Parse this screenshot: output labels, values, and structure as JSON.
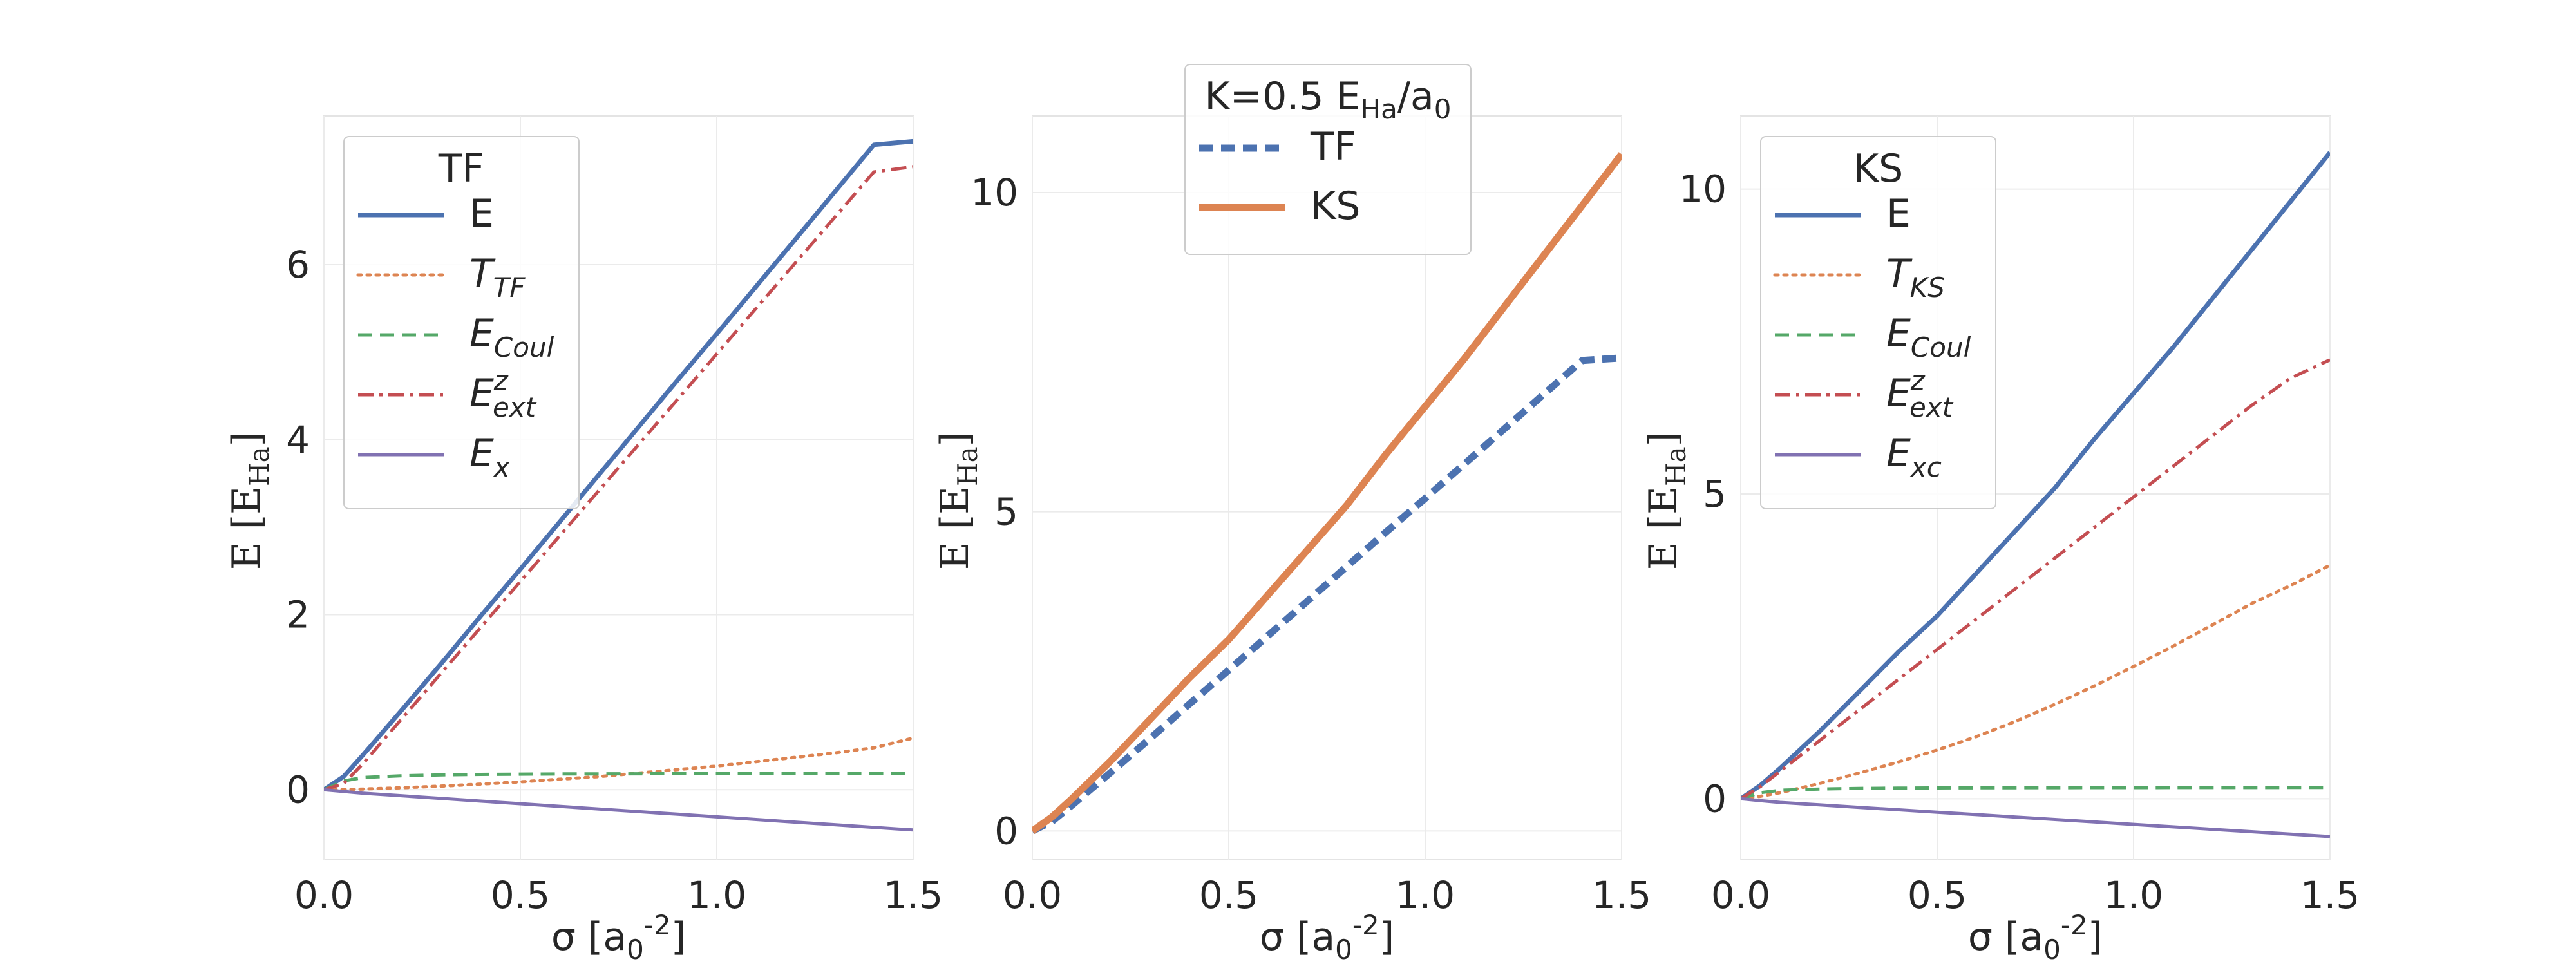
{
  "chart_data": [
    {
      "type": "line",
      "legend_title": "TF",
      "legend_placement": "upper-left",
      "xlabel": "σ [a_0^{-2}]",
      "ylabel": "E [E_{H_a}]",
      "xlim": [
        0.0,
        1.5
      ],
      "ylim": [
        -0.8,
        7.7
      ],
      "xticks": [
        0.0,
        0.5,
        1.0,
        1.5
      ],
      "xtick_labels": [
        "0.0",
        "0.5",
        "1.0",
        "1.5"
      ],
      "yticks": [
        0,
        2,
        4,
        6
      ],
      "ytick_labels": [
        "0",
        "2",
        "4",
        "6"
      ],
      "grid": true,
      "x": [
        0.0,
        0.05,
        0.1,
        0.2,
        0.3,
        0.4,
        0.5,
        0.6,
        0.7,
        0.8,
        0.9,
        1.0,
        1.1,
        1.2,
        1.3,
        1.4,
        1.5
      ],
      "series": [
        {
          "name": "E",
          "label_main": "E",
          "label_sub": "",
          "label_sup": "",
          "color": "#4c72b0",
          "style": "solid",
          "width": 7,
          "values": [
            0.0,
            0.15,
            0.4,
            0.92,
            1.45,
            1.99,
            2.52,
            3.06,
            3.6,
            4.14,
            4.68,
            5.21,
            5.75,
            6.29,
            6.83,
            7.37,
            7.41
          ]
        },
        {
          "name": "T_TF",
          "label_main": "T",
          "label_sub": "TF",
          "label_sup": "",
          "color": "#dd8452",
          "style": "dotted",
          "width": 5,
          "values": [
            0.0,
            0.003,
            0.008,
            0.023,
            0.042,
            0.065,
            0.09,
            0.12,
            0.15,
            0.19,
            0.23,
            0.27,
            0.32,
            0.37,
            0.42,
            0.48,
            0.59
          ]
        },
        {
          "name": "E_Coul",
          "label_main": "E",
          "label_sub": "Coul",
          "label_sup": "",
          "color": "#55a868",
          "style": "dashed",
          "width": 5,
          "values": [
            0.0,
            0.1,
            0.14,
            0.16,
            0.17,
            0.175,
            0.178,
            0.18,
            0.181,
            0.182,
            0.183,
            0.183,
            0.184,
            0.184,
            0.184,
            0.185,
            0.185
          ]
        },
        {
          "name": "E_ext^z",
          "label_main": "E",
          "label_sub": "ext",
          "label_sup": "z",
          "color": "#c44e52",
          "style": "dashdot",
          "width": 5,
          "values": [
            0.0,
            0.07,
            0.3,
            0.82,
            1.34,
            1.86,
            2.38,
            2.9,
            3.42,
            3.94,
            4.46,
            4.98,
            5.5,
            6.02,
            6.54,
            7.06,
            7.12
          ]
        },
        {
          "name": "E_x",
          "label_main": "E",
          "label_sub": "x",
          "label_sup": "",
          "color": "#8172b2",
          "style": "solid",
          "width": 5,
          "values": [
            0.0,
            -0.02,
            -0.04,
            -0.07,
            -0.1,
            -0.13,
            -0.16,
            -0.19,
            -0.22,
            -0.25,
            -0.28,
            -0.31,
            -0.34,
            -0.37,
            -0.4,
            -0.43,
            -0.46
          ]
        }
      ]
    },
    {
      "type": "line",
      "legend_title": "K=0.5 E_{H_a}/a_0",
      "legend_placement": "upper-center",
      "xlabel": "σ [a_0^{-2}]",
      "ylabel": "E [E_{H_a}]",
      "xlim": [
        0.0,
        1.5
      ],
      "ylim": [
        -0.45,
        11.2
      ],
      "xticks": [
        0.0,
        0.5,
        1.0,
        1.5
      ],
      "xtick_labels": [
        "0.0",
        "0.5",
        "1.0",
        "1.5"
      ],
      "yticks": [
        0,
        5,
        10
      ],
      "ytick_labels": [
        "0",
        "5",
        "10"
      ],
      "grid": true,
      "x": [
        0.0,
        0.05,
        0.1,
        0.2,
        0.3,
        0.4,
        0.5,
        0.6,
        0.7,
        0.8,
        0.9,
        1.0,
        1.1,
        1.2,
        1.3,
        1.4,
        1.5
      ],
      "series": [
        {
          "name": "TF",
          "label_main": "TF",
          "label_sub": "",
          "label_sup": "",
          "color": "#4c72b0",
          "style": "dashed",
          "width": 11,
          "values": [
            0.0,
            0.15,
            0.4,
            0.92,
            1.45,
            1.99,
            2.52,
            3.06,
            3.6,
            4.14,
            4.68,
            5.21,
            5.75,
            6.29,
            6.83,
            7.37,
            7.41
          ]
        },
        {
          "name": "KS",
          "label_main": "KS",
          "label_sub": "",
          "label_sup": "",
          "color": "#dd8452",
          "style": "solid",
          "width": 11,
          "values": [
            0.0,
            0.22,
            0.5,
            1.1,
            1.75,
            2.4,
            3.0,
            3.7,
            4.4,
            5.1,
            5.9,
            6.65,
            7.4,
            8.2,
            9.0,
            9.8,
            10.6
          ]
        }
      ]
    },
    {
      "type": "line",
      "legend_title": "KS",
      "legend_placement": "upper-left",
      "xlabel": "σ [a_0^{-2}]",
      "ylabel": "E [E_{H_a}]",
      "xlim": [
        0.0,
        1.5
      ],
      "ylim": [
        -1.0,
        11.2
      ],
      "xticks": [
        0.0,
        0.5,
        1.0,
        1.5
      ],
      "xtick_labels": [
        "0.0",
        "0.5",
        "1.0",
        "1.5"
      ],
      "yticks": [
        0,
        5,
        10
      ],
      "ytick_labels": [
        "0",
        "5",
        "10"
      ],
      "grid": true,
      "x": [
        0.0,
        0.05,
        0.1,
        0.2,
        0.3,
        0.4,
        0.5,
        0.6,
        0.7,
        0.8,
        0.9,
        1.0,
        1.1,
        1.2,
        1.3,
        1.4,
        1.5
      ],
      "series": [
        {
          "name": "E",
          "label_main": "E",
          "label_sub": "",
          "label_sup": "",
          "color": "#4c72b0",
          "style": "solid",
          "width": 7,
          "values": [
            0.0,
            0.22,
            0.5,
            1.1,
            1.75,
            2.4,
            3.0,
            3.7,
            4.4,
            5.1,
            5.9,
            6.65,
            7.4,
            8.2,
            9.0,
            9.8,
            10.6
          ]
        },
        {
          "name": "T_KS",
          "label_main": "T",
          "label_sub": "KS",
          "label_sup": "",
          "color": "#dd8452",
          "style": "dotted",
          "width": 5,
          "values": [
            0.0,
            0.04,
            0.1,
            0.25,
            0.42,
            0.6,
            0.8,
            1.02,
            1.27,
            1.55,
            1.85,
            2.17,
            2.5,
            2.85,
            3.2,
            3.5,
            3.83
          ]
        },
        {
          "name": "E_Coul",
          "label_main": "E",
          "label_sub": "Coul",
          "label_sup": "",
          "color": "#55a868",
          "style": "dashed",
          "width": 5,
          "values": [
            0.0,
            0.1,
            0.14,
            0.16,
            0.17,
            0.175,
            0.178,
            0.18,
            0.181,
            0.182,
            0.183,
            0.183,
            0.184,
            0.184,
            0.184,
            0.185,
            0.185
          ]
        },
        {
          "name": "E_ext^z",
          "label_main": "E",
          "label_sub": "ext",
          "label_sup": "z",
          "color": "#c44e52",
          "style": "dashdot",
          "width": 5,
          "values": [
            0.0,
            0.2,
            0.45,
            0.95,
            1.45,
            1.95,
            2.45,
            2.95,
            3.45,
            3.95,
            4.45,
            4.95,
            5.45,
            5.95,
            6.45,
            6.9,
            7.2
          ]
        },
        {
          "name": "E_xc",
          "label_main": "E",
          "label_sub": "xc",
          "label_sup": "",
          "color": "#8172b2",
          "style": "solid",
          "width": 5,
          "values": [
            0.0,
            -0.03,
            -0.06,
            -0.1,
            -0.14,
            -0.18,
            -0.22,
            -0.26,
            -0.3,
            -0.34,
            -0.38,
            -0.42,
            -0.46,
            -0.5,
            -0.54,
            -0.58,
            -0.62
          ]
        }
      ]
    }
  ]
}
